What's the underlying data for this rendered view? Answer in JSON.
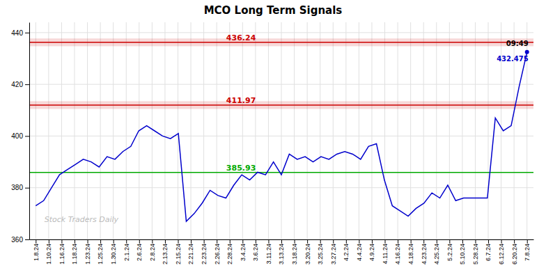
{
  "chart_data": {
    "type": "line",
    "title": "MCO Long Term Signals",
    "x": [
      0,
      0.6129,
      1.2258,
      1.8387,
      2.4516,
      3.0645,
      3.6774,
      4.2903,
      4.9032,
      5.5161,
      6.129,
      6.7419,
      7.3548,
      7.9677,
      8.5806,
      9.1935,
      9.8065,
      10.4194,
      11.0323,
      11.6452,
      12.2581,
      12.871,
      13.4839,
      14.0968,
      14.7097,
      15.3226,
      15.9355,
      16.5484,
      17.1613,
      17.7742,
      18.3871,
      19,
      19.6129,
      20.2258,
      20.8387,
      21.4516,
      22.0645,
      22.6774,
      23.2903,
      23.9032,
      24.5161,
      25.129,
      25.7419,
      26.3548,
      26.9677,
      27.5806,
      28.1935,
      28.8065,
      29.4194,
      30.0323,
      30.6452,
      31.2581,
      31.871,
      32.4839,
      33.0968,
      33.7097,
      34.3226,
      34.9355,
      35.5484,
      36.1613,
      36.7742,
      37.3871,
      38
    ],
    "values": [
      373,
      375,
      380,
      385,
      387,
      389,
      391,
      390,
      388,
      392,
      391,
      394,
      396,
      402,
      404,
      402,
      400,
      399,
      401,
      367,
      370,
      374,
      379,
      377,
      376,
      381,
      385,
      383,
      386,
      385,
      390,
      385,
      393,
      391,
      392,
      390,
      392,
      391,
      393,
      394,
      393,
      391,
      396,
      397,
      383,
      373,
      371,
      369,
      372,
      374,
      378,
      376,
      381,
      375,
      376,
      376,
      376,
      376,
      407,
      402,
      404,
      419,
      432.475
    ],
    "color": "#0000cc",
    "xlim": [
      -0.5,
      38.5
    ],
    "xticks": [
      {
        "value": 0,
        "label": "1.8.24"
      },
      {
        "value": 1,
        "label": "1.10.24"
      },
      {
        "value": 2,
        "label": "1.16.24"
      },
      {
        "value": 3,
        "label": "1.18.24"
      },
      {
        "value": 4,
        "label": "1.23.24"
      },
      {
        "value": 5,
        "label": "1.25.24"
      },
      {
        "value": 6,
        "label": "1.30.24"
      },
      {
        "value": 7,
        "label": "2.1.24"
      },
      {
        "value": 8,
        "label": "2.6.24"
      },
      {
        "value": 9,
        "label": "2.8.24"
      },
      {
        "value": 10,
        "label": "2.13.24"
      },
      {
        "value": 11,
        "label": "2.15.24"
      },
      {
        "value": 12,
        "label": "2.21.24"
      },
      {
        "value": 13,
        "label": "2.23.24"
      },
      {
        "value": 14,
        "label": "2.26.24"
      },
      {
        "value": 15,
        "label": "2.28.24"
      },
      {
        "value": 16,
        "label": "3.4.24"
      },
      {
        "value": 17,
        "label": "3.6.24"
      },
      {
        "value": 18,
        "label": "3.11.24"
      },
      {
        "value": 19,
        "label": "3.13.24"
      },
      {
        "value": 20,
        "label": "3.18.24"
      },
      {
        "value": 21,
        "label": "3.20.24"
      },
      {
        "value": 22,
        "label": "3.25.24"
      },
      {
        "value": 23,
        "label": "3.27.24"
      },
      {
        "value": 24,
        "label": "4.2.24"
      },
      {
        "value": 25,
        "label": "4.4.24"
      },
      {
        "value": 26,
        "label": "4.9.24"
      },
      {
        "value": 27,
        "label": "4.11.24"
      },
      {
        "value": 28,
        "label": "4.16.24"
      },
      {
        "value": 29,
        "label": "4.18.24"
      },
      {
        "value": 30,
        "label": "4.23.24"
      },
      {
        "value": 31,
        "label": "4.25.24"
      },
      {
        "value": 32,
        "label": "5.2.24"
      },
      {
        "value": 33,
        "label": "5.10.24"
      },
      {
        "value": 34,
        "label": "5.28.24"
      },
      {
        "value": 35,
        "label": "6.7.24"
      },
      {
        "value": 36,
        "label": "6.12.24"
      },
      {
        "value": 37,
        "label": "6.20.24"
      },
      {
        "value": 38,
        "label": "7.8.24"
      }
    ],
    "ylim": [
      360,
      444
    ],
    "yticks": [
      360,
      380,
      400,
      420,
      440
    ],
    "grid": true,
    "reference_lines": [
      {
        "value": 436.24,
        "label": "436.24",
        "color": "#cc0000",
        "band_halfwidth": 1.5
      },
      {
        "value": 411.97,
        "label": "411.97",
        "color": "#cc0000",
        "band_halfwidth": 1.5
      },
      {
        "value": 385.93,
        "label": "385.93",
        "color": "#00aa00"
      }
    ],
    "annotations": [
      {
        "text": "09:49"
      },
      {
        "text": "432.475"
      }
    ],
    "watermark": "Stock Traders Daily"
  }
}
